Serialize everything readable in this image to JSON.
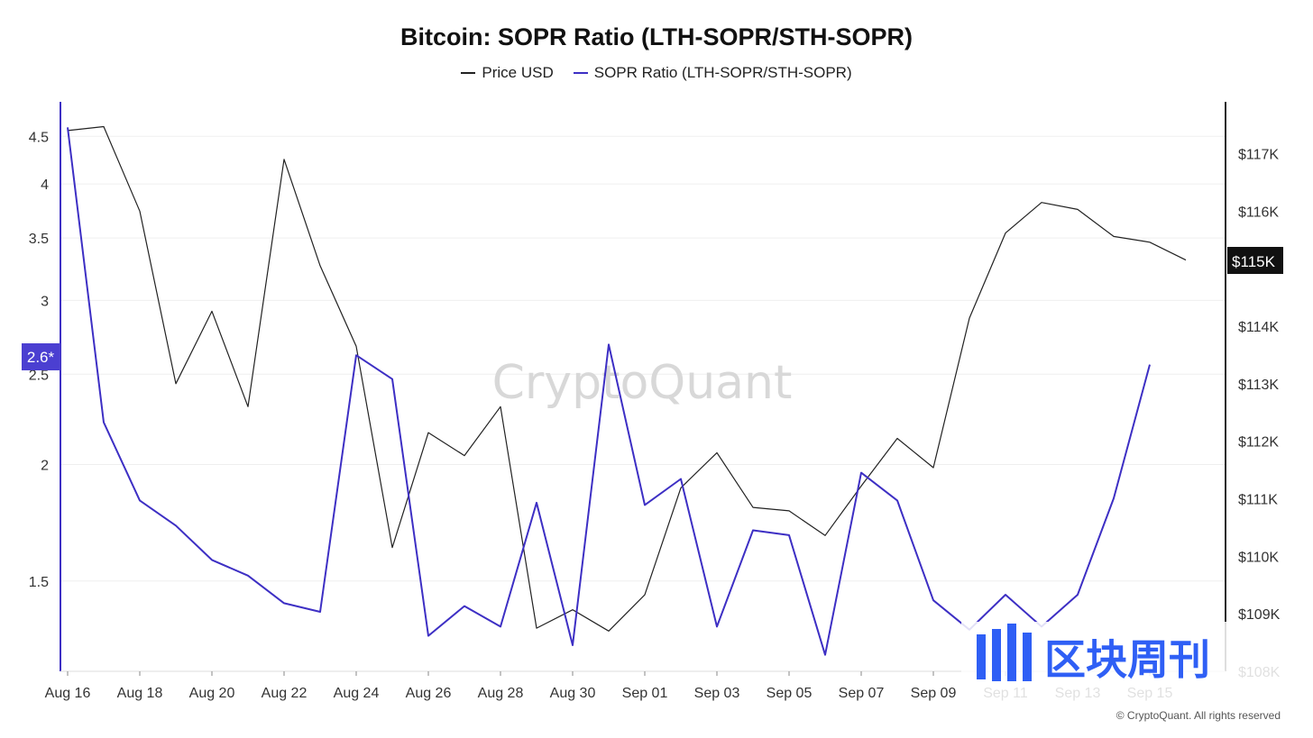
{
  "chart_data": {
    "type": "line",
    "title": "Bitcoin: SOPR Ratio (LTH-SOPR/STH-SOPR)",
    "x": [
      "Aug 16",
      "Aug 17",
      "Aug 18",
      "Aug 19",
      "Aug 20",
      "Aug 21",
      "Aug 22",
      "Aug 23",
      "Aug 24",
      "Aug 25",
      "Aug 26",
      "Aug 27",
      "Aug 28",
      "Aug 29",
      "Aug 30",
      "Aug 31",
      "Sep 01",
      "Sep 02",
      "Sep 03",
      "Sep 04",
      "Sep 05",
      "Sep 06",
      "Sep 07",
      "Sep 08",
      "Sep 09",
      "Sep 10",
      "Sep 11",
      "Sep 12",
      "Sep 13",
      "Sep 14",
      "Sep 15",
      "Sep 16"
    ],
    "x_tick_labels": [
      "Aug 16",
      "Aug 18",
      "Aug 20",
      "Aug 22",
      "Aug 24",
      "Aug 26",
      "Aug 28",
      "Aug 30",
      "Sep 01",
      "Sep 03",
      "Sep 05",
      "Sep 07",
      "Sep 09",
      "Sep 11",
      "Sep 13",
      "Sep 15"
    ],
    "series": [
      {
        "name": "Price USD",
        "axis": "right",
        "color": "#222222",
        "values": [
          117400,
          117470,
          116000,
          113000,
          114260,
          112600,
          116900,
          115050,
          113650,
          110150,
          112150,
          111750,
          112600,
          108750,
          109070,
          108700,
          109330,
          111190,
          111800,
          110850,
          110790,
          110360,
          111220,
          112050,
          111540,
          114140,
          115620,
          116150,
          116030,
          115560,
          115460,
          115150
        ]
      },
      {
        "name": "SOPR Ratio (LTH-SOPR/STH-SOPR)",
        "axis": "left",
        "color": "#3d2fc4",
        "values": [
          4.6,
          2.22,
          1.83,
          1.72,
          1.58,
          1.52,
          1.42,
          1.39,
          2.62,
          2.47,
          1.31,
          1.41,
          1.34,
          1.82,
          1.28,
          2.69,
          1.81,
          1.93,
          1.34,
          1.7,
          1.68,
          1.25,
          1.96,
          1.83,
          1.43,
          1.33,
          1.45,
          1.34,
          1.45,
          1.84,
          2.56,
          null
        ]
      }
    ],
    "y_left": {
      "ticks": [
        "4.5",
        "4",
        "3.5",
        "3",
        "2.5",
        "2",
        "1.5"
      ],
      "scale": "log",
      "range": [
        1.2,
        4.9
      ]
    },
    "y_right": {
      "ticks": [
        "$117K",
        "$116K",
        "$115K",
        "$114K",
        "$113K",
        "$112K",
        "$111K",
        "$110K",
        "$109K",
        "$108K"
      ],
      "range": [
        108000,
        117900
      ]
    },
    "current_left_label": "2.6*",
    "current_right_label": "$115K",
    "grid": true,
    "legend_position": "top-center"
  },
  "watermark": "CryptoQuant",
  "copyright": "© CryptoQuant. All rights reserved",
  "overlay_logo_text": "区块周刊",
  "colors": {
    "sopr": "#3d2fc4",
    "price": "#222222",
    "badge_left": "#4b3fd1",
    "badge_right": "#111111",
    "overlay": "#2f5ff5"
  }
}
